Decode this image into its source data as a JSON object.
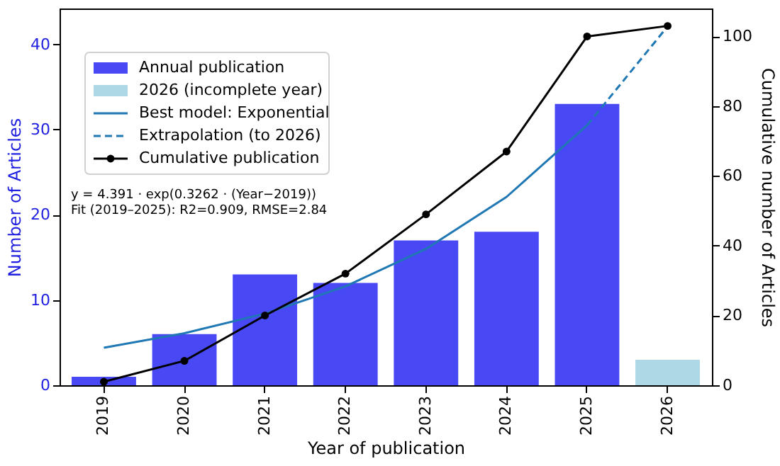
{
  "chart_data": {
    "type": "bar",
    "xlabel": "Year of publication",
    "ylabel": "Number of Articles",
    "y2label": "Cumulative number of Articles",
    "categories": [
      "2019",
      "2020",
      "2021",
      "2022",
      "2023",
      "2024",
      "2025",
      "2026"
    ],
    "series": [
      {
        "name": "Annual publication",
        "color": "#4848f5",
        "values": [
          1,
          6,
          13,
          12,
          17,
          18,
          33,
          null
        ]
      },
      {
        "name": "2026 (incomplete year)",
        "color": "#add8e6",
        "values": [
          null,
          null,
          null,
          null,
          null,
          null,
          null,
          3
        ]
      },
      {
        "name": "Best model: Exponential",
        "type": "line",
        "color": "#1f77b4",
        "line_style": "solid",
        "marker": "none",
        "values": [
          4.4,
          6.1,
          8.4,
          11.6,
          16.0,
          22.1,
          30.5,
          null
        ]
      },
      {
        "name": "Extrapolation (to 2026)",
        "type": "line",
        "color": "#1f77b4",
        "line_style": "dashed",
        "marker": "none",
        "values": [
          null,
          null,
          null,
          null,
          null,
          null,
          30.5,
          42.1
        ]
      },
      {
        "name": "Cumulative publication",
        "type": "line",
        "axis": "y2",
        "color": "#000000",
        "line_style": "solid",
        "marker": "circle",
        "values": [
          1,
          7,
          20,
          32,
          49,
          67,
          100,
          103
        ]
      }
    ],
    "ylim": [
      0,
      44.2
    ],
    "yticks": [
      0,
      10,
      20,
      30,
      40
    ],
    "y2lim": [
      0,
      108
    ],
    "y2ticks": [
      0,
      20,
      40,
      60,
      80,
      100
    ],
    "annotations": [
      "y = 4.391 · exp(0.3262 · (Year−2019))",
      "Fit (2019–2025): R2=0.909, RMSE=2.84"
    ],
    "grid": false,
    "legend": "top left"
  }
}
